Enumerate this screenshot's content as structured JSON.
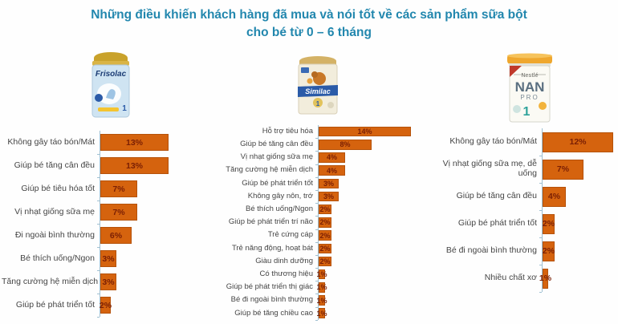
{
  "title": {
    "line1": "Những điều khiến khách hàng đã mua và nói tốt về các sản phẩm sữa bột",
    "line2": "cho bé từ 0 – 6 tháng"
  },
  "colors": {
    "title_text": "#2287AE",
    "bar_fill": "#D5630E",
    "bar_border": "#B5520A",
    "bar_value_text": "#7A1F04",
    "category_label_text": "#454545",
    "axis_line": "#9FC0D2"
  },
  "products": [
    {
      "id": "frisolac",
      "brand": "Frisolac",
      "stage": "1"
    },
    {
      "id": "similac",
      "brand": "Similac",
      "stage": "1"
    },
    {
      "id": "nan",
      "logo": "Nestlé",
      "brand": "NAN",
      "line": "PRO",
      "stage": "1"
    }
  ],
  "chart_data": [
    {
      "type": "bar",
      "orientation": "horizontal",
      "product": "Frisolac 1",
      "unit": "%",
      "xlim": [
        0,
        14
      ],
      "grid": false,
      "legend": false,
      "categories": [
        "Không gây táo bón/Mát",
        "Giúp bé tăng cân đều",
        "Giúp bé tiêu hóa tốt",
        "Vị nhạt giống sữa mẹ",
        "Đi ngoài bình thường",
        "Bé thích uống/Ngon",
        "Tăng cường hệ miễn dịch",
        "Giúp bé phát triển tốt"
      ],
      "values": [
        13,
        13,
        7,
        7,
        6,
        3,
        3,
        2
      ]
    },
    {
      "type": "bar",
      "orientation": "horizontal",
      "product": "Similac 1",
      "unit": "%",
      "xlim": [
        0,
        15
      ],
      "grid": false,
      "legend": false,
      "categories": [
        "Hỗ trợ tiêu hóa",
        "Giúp bé tăng cân đều",
        "Vị nhạt giống sữa mẹ",
        "Tăng cường hệ miễn dịch",
        "Giúp bé phát triển tốt",
        "Không gây nôn, trớ",
        "Bé thích uống/Ngon",
        "Giúp bé phát triển trí não",
        "Trẻ cứng cáp",
        "Trẻ năng động, hoạt bát",
        "Giàu dinh dưỡng",
        "Có thương hiệu",
        "Giúp bé phát triển thị giác",
        "Bé đi ngoài bình thường",
        "Giúp bé tăng chiều cao"
      ],
      "values": [
        14,
        8,
        4,
        4,
        3,
        3,
        2,
        2,
        2,
        2,
        2,
        1,
        1,
        1,
        1
      ]
    },
    {
      "type": "bar",
      "orientation": "horizontal",
      "product": "NAN Pro 1",
      "unit": "%",
      "xlim": [
        0,
        13
      ],
      "grid": false,
      "legend": false,
      "categories": [
        "Không gây táo bón/Mát",
        "Vị nhạt giống sữa mẹ, dễ uống",
        "Giúp bé tăng cân đều",
        "Giúp bé phát triển tốt",
        "Bé đi ngoài bình thường",
        "Nhiều chất xơ"
      ],
      "values": [
        12,
        7,
        4,
        2,
        2,
        1
      ]
    }
  ]
}
